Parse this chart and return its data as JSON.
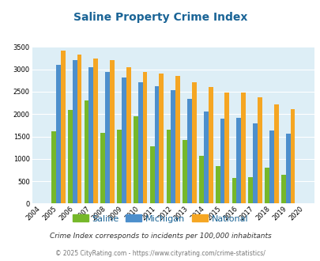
{
  "title": "Saline Property Crime Index",
  "years": [
    2004,
    2005,
    2006,
    2007,
    2008,
    2009,
    2010,
    2011,
    2012,
    2013,
    2014,
    2015,
    2016,
    2017,
    2018,
    2019,
    2020
  ],
  "saline": [
    0,
    1620,
    2100,
    2300,
    1580,
    1650,
    1960,
    1280,
    1650,
    1420,
    1060,
    840,
    580,
    590,
    810,
    650,
    0
  ],
  "michigan": [
    0,
    3100,
    3200,
    3050,
    2940,
    2820,
    2720,
    2620,
    2540,
    2340,
    2050,
    1890,
    1920,
    1790,
    1630,
    1570,
    0
  ],
  "national": [
    0,
    3420,
    3330,
    3250,
    3200,
    3040,
    2950,
    2900,
    2860,
    2720,
    2600,
    2490,
    2480,
    2370,
    2210,
    2110,
    0
  ],
  "saline_color": "#76b82a",
  "michigan_color": "#4d8fcc",
  "national_color": "#f5a623",
  "bg_color": "#ddeef6",
  "ylim": [
    0,
    3500
  ],
  "yticks": [
    0,
    500,
    1000,
    1500,
    2000,
    2500,
    3000,
    3500
  ],
  "subtitle": "Crime Index corresponds to incidents per 100,000 inhabitants",
  "footer": "© 2025 CityRating.com - https://www.cityrating.com/crime-statistics/",
  "legend_labels": [
    "Saline",
    "Michigan",
    "National"
  ],
  "title_color": "#1a6496",
  "subtitle_color": "#333333",
  "footer_color": "#777777"
}
